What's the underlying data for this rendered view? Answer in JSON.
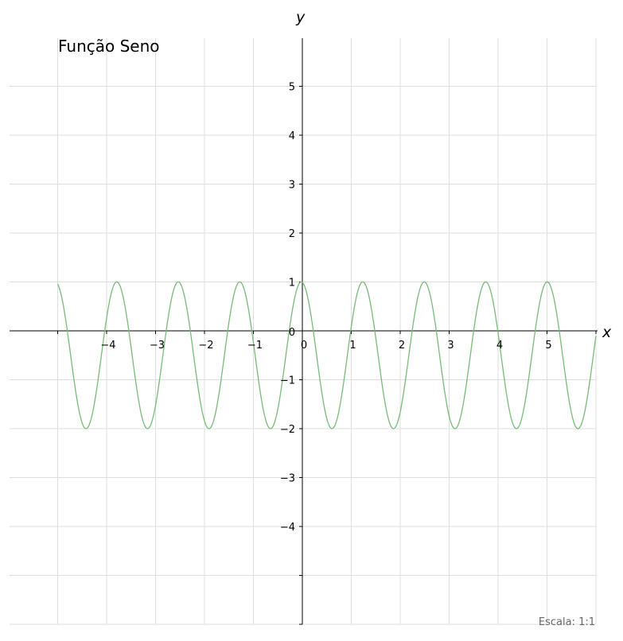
{
  "chart_data": {
    "type": "line",
    "title": "Função Seno",
    "xlabel": "x",
    "ylabel": "y",
    "xlim": [
      -5,
      6
    ],
    "ylim": [
      -6,
      6
    ],
    "x_ticks": [
      -4,
      -3,
      -2,
      -1,
      0,
      1,
      2,
      3,
      4,
      5
    ],
    "y_ticks": [
      -4,
      -3,
      -2,
      -1,
      0,
      1,
      2,
      3,
      4,
      5
    ],
    "x_tick_labels": [
      "−4",
      "−3",
      "−2",
      "−1",
      "0",
      "1",
      "2",
      "3",
      "4",
      "5"
    ],
    "y_tick_labels": [
      "−4",
      "−3",
      "−2",
      "−1",
      "0",
      "1",
      "2",
      "3",
      "4",
      "5"
    ],
    "grid": true,
    "series": [
      {
        "function": "y = 1.5·sin(5·x − 4.6) − 0.5",
        "amplitude": 1.5,
        "frequency": 5,
        "phase": -4.6,
        "offset": -0.5,
        "x_range": [
          -5,
          6
        ],
        "color": "#77bb77"
      }
    ]
  },
  "footer": "Escala: 1:1"
}
